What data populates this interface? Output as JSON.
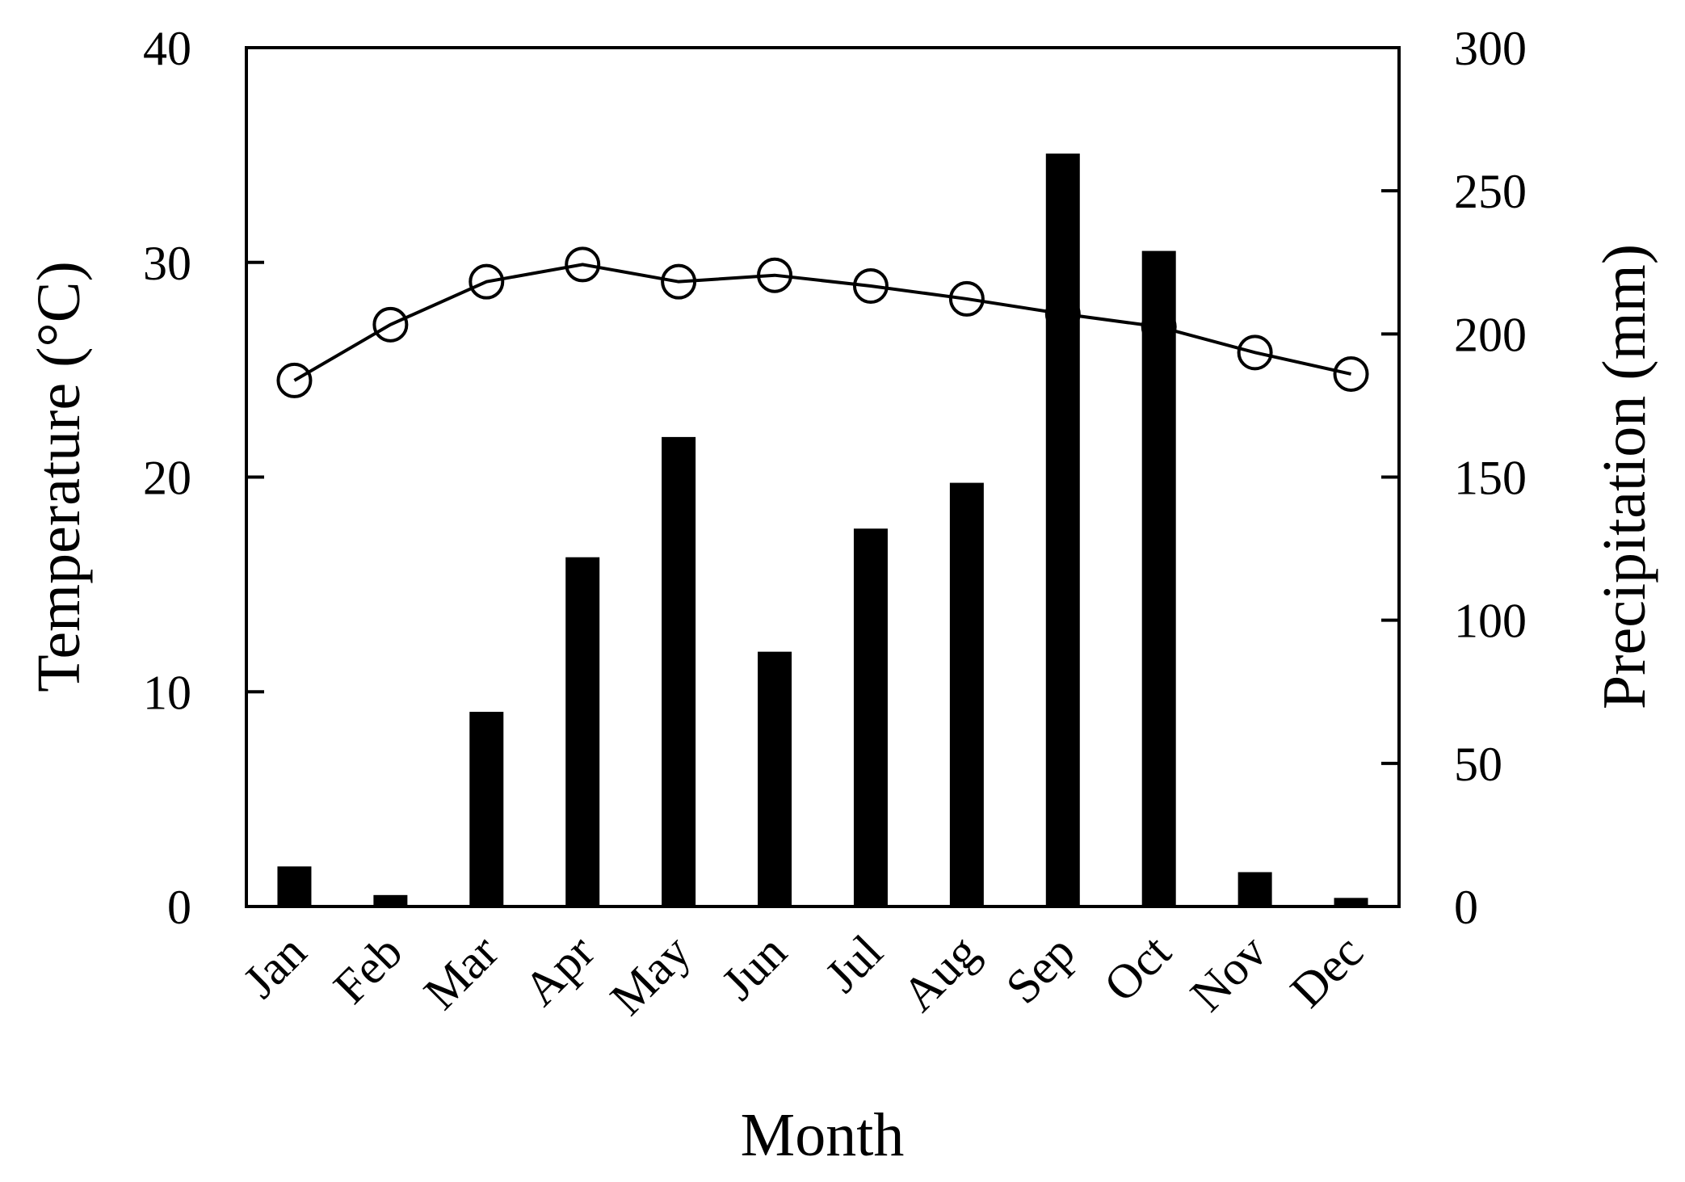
{
  "chart_data": {
    "type": "bar",
    "xlabel": "Month",
    "categories": [
      "Jan",
      "Feb",
      "Mar",
      "Apr",
      "May",
      "Jun",
      "Jul",
      "Aug",
      "Sep",
      "Oct",
      "Nov",
      "Dec"
    ],
    "left_axis": {
      "label": "Temperature (°C)",
      "ylim": [
        0,
        40
      ],
      "ticks": [
        0,
        10,
        20,
        30,
        40
      ]
    },
    "right_axis": {
      "label": "Precipitation (mm)",
      "ylim": [
        0,
        300
      ],
      "ticks": [
        0,
        50,
        100,
        150,
        200,
        250,
        300
      ]
    },
    "series": [
      {
        "type": "bar",
        "axis": "right",
        "color": "#000000",
        "values": [
          14,
          4,
          68,
          122,
          164,
          89,
          132,
          148,
          263,
          229,
          12,
          3
        ]
      },
      {
        "type": "line",
        "axis": "left",
        "color": "#000000",
        "marker": "open-circle",
        "values": [
          24.5,
          27.1,
          29.1,
          29.9,
          29.1,
          29.4,
          28.9,
          28.3,
          27.6,
          27.0,
          25.8,
          24.8
        ]
      }
    ],
    "grid": false,
    "legend": "none"
  }
}
